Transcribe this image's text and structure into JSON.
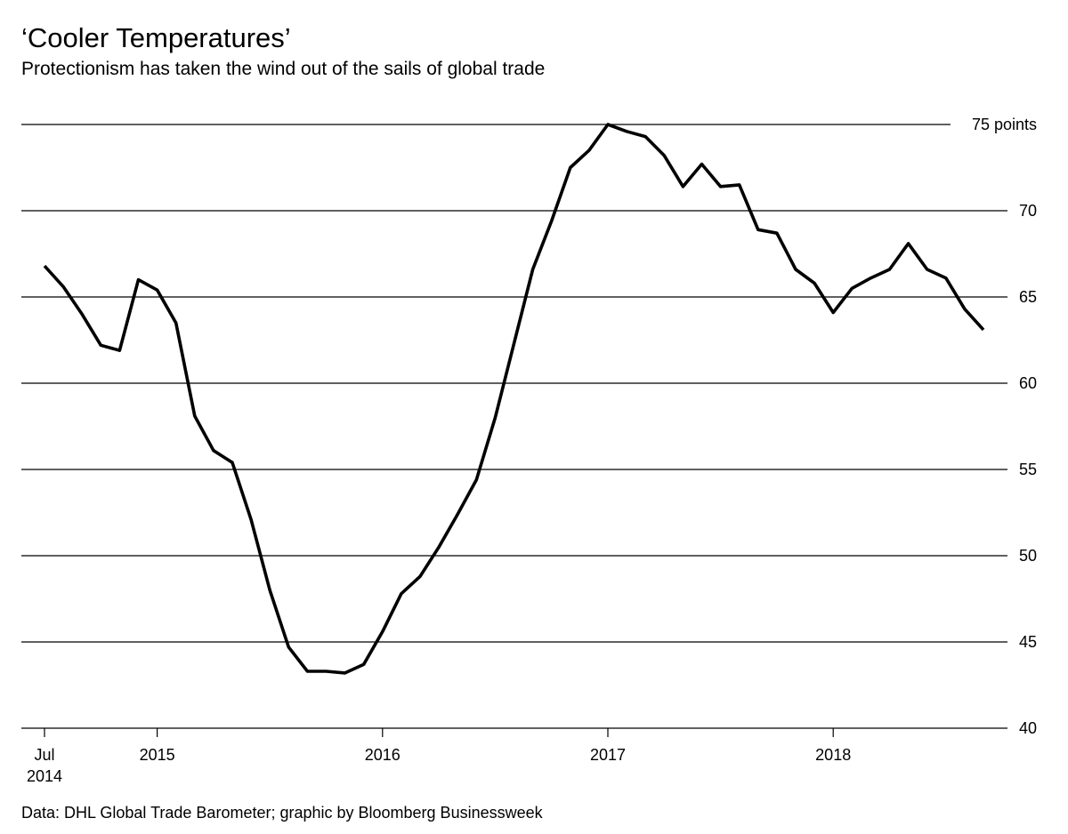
{
  "chart_data": {
    "type": "line",
    "title": "‘Cooler Temperatures’",
    "subtitle": "Protectionism has taken the wind out of the sails of global trade",
    "source": "Data: DHL Global Trade Barometer; graphic by Bloomberg Businessweek",
    "ylim": [
      40,
      75
    ],
    "y_ticks": [
      {
        "value": 75,
        "label": "75 points"
      },
      {
        "value": 70,
        "label": "70"
      },
      {
        "value": 65,
        "label": "65"
      },
      {
        "value": 60,
        "label": "60"
      },
      {
        "value": 55,
        "label": "55"
      },
      {
        "value": 50,
        "label": "50"
      },
      {
        "value": 45,
        "label": "45"
      },
      {
        "value": 40,
        "label": "40"
      }
    ],
    "x_ticks": [
      {
        "date": "2014-07",
        "label": "Jul",
        "label2": "2014"
      },
      {
        "date": "2015-01",
        "label": "2015"
      },
      {
        "date": "2016-01",
        "label": "2016"
      },
      {
        "date": "2017-01",
        "label": "2017"
      },
      {
        "date": "2018-01",
        "label": "2018"
      }
    ],
    "grid": true,
    "series": [
      {
        "x": [
          "2014-07",
          "2014-08",
          "2014-09",
          "2014-10",
          "2014-11",
          "2014-12",
          "2015-01",
          "2015-02",
          "2015-03",
          "2015-04",
          "2015-05",
          "2015-06",
          "2015-07",
          "2015-08",
          "2015-09",
          "2015-10",
          "2015-11",
          "2015-12",
          "2016-01",
          "2016-02",
          "2016-03",
          "2016-04",
          "2016-05",
          "2016-06",
          "2016-07",
          "2016-08",
          "2016-09",
          "2016-10",
          "2016-11",
          "2016-12",
          "2017-01",
          "2017-02",
          "2017-03",
          "2017-04",
          "2017-05",
          "2017-06",
          "2017-07",
          "2017-08",
          "2017-09",
          "2017-10",
          "2017-11",
          "2017-12",
          "2018-01",
          "2018-02",
          "2018-03",
          "2018-04",
          "2018-05",
          "2018-06",
          "2018-07",
          "2018-08",
          "2018-09"
        ],
        "values": [
          66.8,
          65.6,
          64.0,
          62.2,
          61.9,
          66.0,
          65.4,
          63.5,
          58.1,
          56.1,
          55.4,
          52.1,
          48.0,
          44.7,
          43.3,
          43.3,
          43.2,
          43.7,
          45.6,
          47.8,
          48.8,
          50.5,
          52.4,
          54.4,
          58.0,
          62.3,
          66.6,
          69.4,
          72.5,
          73.5,
          75.0,
          74.6,
          74.3,
          73.2,
          71.4,
          72.7,
          71.4,
          71.5,
          68.9,
          68.7,
          66.6,
          65.8,
          64.1,
          65.5,
          66.1,
          66.6,
          68.1,
          66.6,
          66.1,
          64.3,
          63.1
        ]
      }
    ]
  }
}
